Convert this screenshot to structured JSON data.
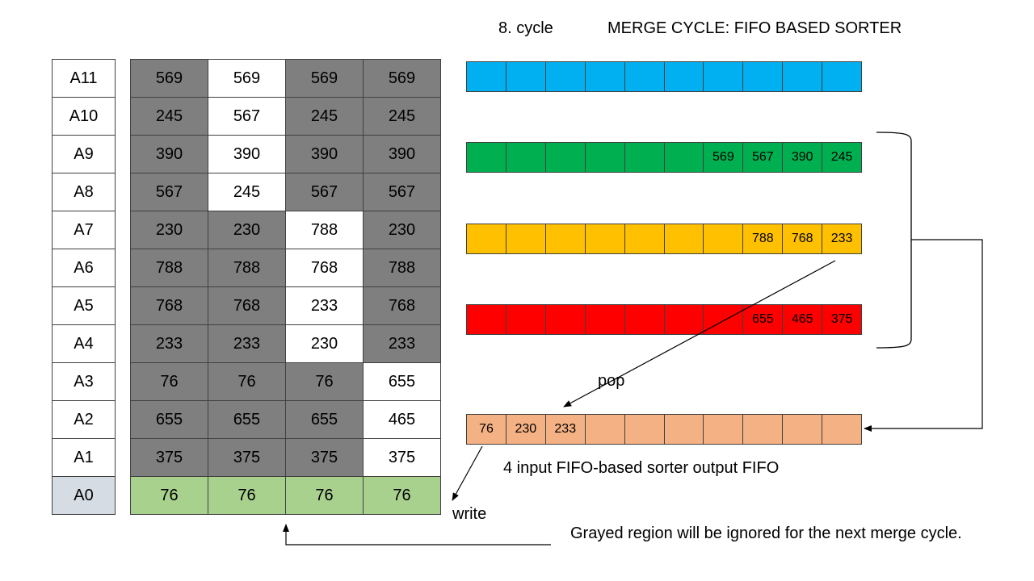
{
  "header": {
    "cycle": "8. cycle",
    "title": "MERGE CYCLE: FIFO BASED SORTER"
  },
  "addresses": [
    {
      "label": "A11",
      "color": "#ffffff"
    },
    {
      "label": "A10",
      "color": "#ffffff"
    },
    {
      "label": "A9",
      "color": "#ffffff"
    },
    {
      "label": "A8",
      "color": "#ffffff"
    },
    {
      "label": "A7",
      "color": "#ffffff"
    },
    {
      "label": "A6",
      "color": "#ffffff"
    },
    {
      "label": "A5",
      "color": "#ffffff"
    },
    {
      "label": "A4",
      "color": "#ffffff"
    },
    {
      "label": "A3",
      "color": "#ffffff"
    },
    {
      "label": "A2",
      "color": "#ffffff"
    },
    {
      "label": "A1",
      "color": "#ffffff"
    },
    {
      "label": "A0",
      "color": "#d6dce4"
    }
  ],
  "colors": {
    "gray": "#7f7f7f",
    "white": "#ffffff",
    "green_row": "#a9d18e",
    "fifo_blue": "#00b0f0",
    "fifo_green": "#00b050",
    "fifo_yellow": "#ffc000",
    "fifo_red": "#ff0000",
    "fifo_output": "#f4b183"
  },
  "memory": [
    [
      {
        "v": "569",
        "c": "gray"
      },
      {
        "v": "569",
        "c": "white"
      },
      {
        "v": "569",
        "c": "gray"
      },
      {
        "v": "569",
        "c": "gray"
      }
    ],
    [
      {
        "v": "245",
        "c": "gray"
      },
      {
        "v": "567",
        "c": "white"
      },
      {
        "v": "245",
        "c": "gray"
      },
      {
        "v": "245",
        "c": "gray"
      }
    ],
    [
      {
        "v": "390",
        "c": "gray"
      },
      {
        "v": "390",
        "c": "white"
      },
      {
        "v": "390",
        "c": "gray"
      },
      {
        "v": "390",
        "c": "gray"
      }
    ],
    [
      {
        "v": "567",
        "c": "gray"
      },
      {
        "v": "245",
        "c": "white"
      },
      {
        "v": "567",
        "c": "gray"
      },
      {
        "v": "567",
        "c": "gray"
      }
    ],
    [
      {
        "v": "230",
        "c": "gray"
      },
      {
        "v": "230",
        "c": "gray"
      },
      {
        "v": "788",
        "c": "white"
      },
      {
        "v": "230",
        "c": "gray"
      }
    ],
    [
      {
        "v": "788",
        "c": "gray"
      },
      {
        "v": "788",
        "c": "gray"
      },
      {
        "v": "768",
        "c": "white"
      },
      {
        "v": "788",
        "c": "gray"
      }
    ],
    [
      {
        "v": "768",
        "c": "gray"
      },
      {
        "v": "768",
        "c": "gray"
      },
      {
        "v": "233",
        "c": "white"
      },
      {
        "v": "768",
        "c": "gray"
      }
    ],
    [
      {
        "v": "233",
        "c": "gray"
      },
      {
        "v": "233",
        "c": "gray"
      },
      {
        "v": "230",
        "c": "white"
      },
      {
        "v": "233",
        "c": "gray"
      }
    ],
    [
      {
        "v": "76",
        "c": "gray"
      },
      {
        "v": "76",
        "c": "gray"
      },
      {
        "v": "76",
        "c": "gray"
      },
      {
        "v": "655",
        "c": "white"
      }
    ],
    [
      {
        "v": "655",
        "c": "gray"
      },
      {
        "v": "655",
        "c": "gray"
      },
      {
        "v": "655",
        "c": "gray"
      },
      {
        "v": "465",
        "c": "white"
      }
    ],
    [
      {
        "v": "375",
        "c": "gray"
      },
      {
        "v": "375",
        "c": "gray"
      },
      {
        "v": "375",
        "c": "gray"
      },
      {
        "v": "375",
        "c": "white"
      }
    ],
    [
      {
        "v": "76",
        "c": "green_row"
      },
      {
        "v": "76",
        "c": "green_row"
      },
      {
        "v": "76",
        "c": "green_row"
      },
      {
        "v": "76",
        "c": "green_row"
      }
    ]
  ],
  "fifos": [
    {
      "name": "fifo-blue",
      "color": "fifo_blue",
      "cells": [
        "",
        "",
        "",
        "",
        "",
        "",
        "",
        "",
        "",
        ""
      ]
    },
    {
      "name": "fifo-green",
      "color": "fifo_green",
      "cells": [
        "",
        "",
        "",
        "",
        "",
        "",
        "569",
        "567",
        "390",
        "245"
      ]
    },
    {
      "name": "fifo-yellow",
      "color": "fifo_yellow",
      "cells": [
        "",
        "",
        "",
        "",
        "",
        "",
        "",
        "788",
        "768",
        "233"
      ]
    },
    {
      "name": "fifo-red",
      "color": "fifo_red",
      "cells": [
        "",
        "",
        "",
        "",
        "",
        "",
        "",
        "655",
        "465",
        "375"
      ]
    },
    {
      "name": "fifo-output",
      "color": "fifo_output",
      "cells": [
        "76",
        "230",
        "233",
        "",
        "",
        "",
        "",
        "",
        "",
        ""
      ]
    }
  ],
  "labels": {
    "pop": "pop",
    "write": "write",
    "output_fifo": "4 input FIFO-based sorter output FIFO",
    "note": "Grayed region will be ignored for the next merge cycle."
  }
}
